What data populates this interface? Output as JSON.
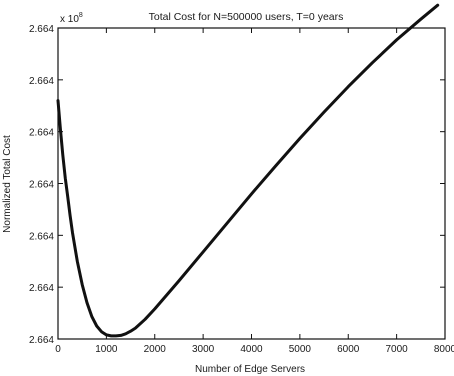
{
  "chart_data": {
    "type": "line",
    "title": "Total Cost for N=500000 users, T=0 years",
    "xlabel": "Number of Edge Servers",
    "ylabel": "Normalized Total Cost",
    "y_exponent_label": "x 10",
    "y_exponent_power": "8",
    "xlim": [
      0,
      8000
    ],
    "ylim": [
      0,
      6
    ],
    "x_ticks": [
      0,
      1000,
      2000,
      3000,
      4000,
      5000,
      6000,
      7000,
      8000
    ],
    "x_tick_labels": [
      "0",
      "1000",
      "2000",
      "3000",
      "4000",
      "5000",
      "6000",
      "7000",
      "8000"
    ],
    "y_ticks": [
      0,
      1,
      2,
      3,
      4,
      5,
      6
    ],
    "y_tick_labels": [
      "2.664",
      "2.664",
      "2.664",
      "2.664",
      "2.664",
      "2.664",
      "2.664"
    ],
    "grid": false,
    "legend": "none",
    "line_color": "#111111",
    "series": [
      {
        "x": [
          0,
          50,
          100,
          150,
          200,
          250,
          300,
          400,
          500,
          600,
          700,
          800,
          900,
          1000,
          1100,
          1200,
          1300,
          1400,
          1500,
          1600,
          1800,
          2000,
          2500,
          3000,
          3500,
          4000,
          4500,
          5000,
          5500,
          6000,
          6500,
          7000,
          7500,
          7850
        ],
        "values": [
          4.6,
          4.05,
          3.55,
          3.1,
          2.75,
          2.38,
          2.05,
          1.5,
          1.05,
          0.7,
          0.43,
          0.25,
          0.14,
          0.08,
          0.06,
          0.06,
          0.07,
          0.1,
          0.15,
          0.21,
          0.38,
          0.58,
          1.12,
          1.68,
          2.24,
          2.8,
          3.34,
          3.87,
          4.38,
          4.87,
          5.33,
          5.77,
          6.17,
          6.44
        ]
      }
    ]
  }
}
